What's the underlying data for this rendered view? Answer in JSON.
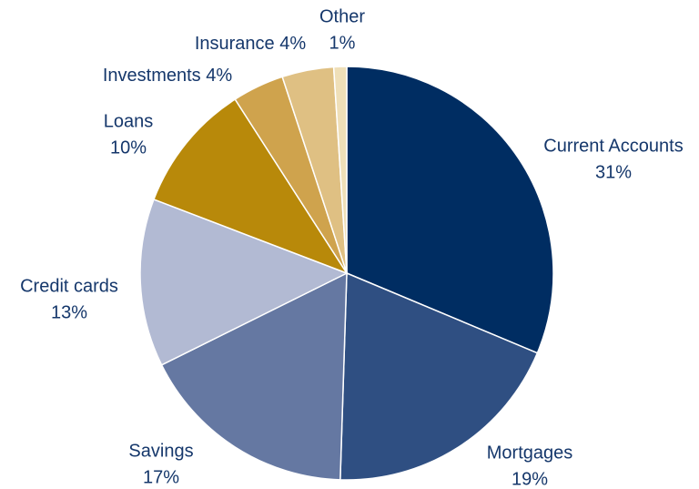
{
  "chart_data": {
    "type": "pie",
    "categories": [
      "Current Accounts",
      "Mortgages",
      "Savings",
      "Credit cards",
      "Loans",
      "Investments",
      "Insurance",
      "Other"
    ],
    "values": [
      31,
      19,
      17,
      13,
      10,
      4,
      4,
      1
    ],
    "value_labels": [
      "31%",
      "19%",
      "17%",
      "13%",
      "10%",
      "4%",
      "4%",
      "1%"
    ],
    "colors": [
      "#002d62",
      "#2f4f82",
      "#6578a2",
      "#b2bad3",
      "#b8890a",
      "#cfa34d",
      "#dfc083",
      "#efdfb8"
    ]
  }
}
